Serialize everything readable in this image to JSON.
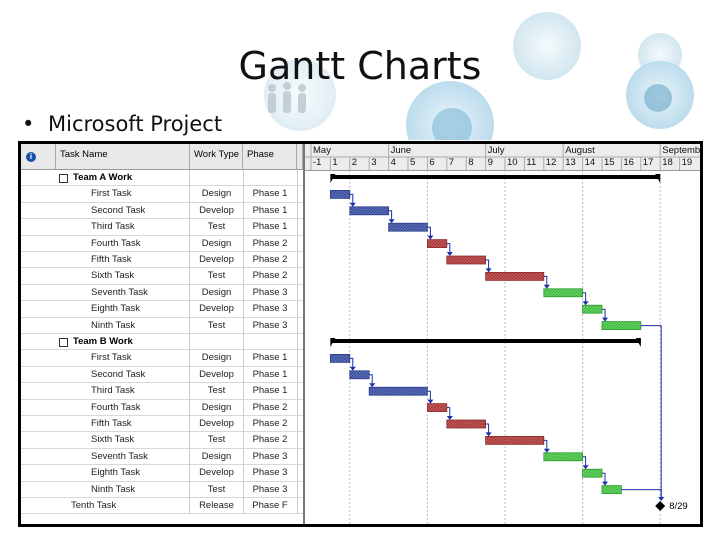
{
  "slide": {
    "title": "Gantt Charts",
    "bullet": "Microsoft Project"
  },
  "colors": {
    "accent_blue": "#2c3f8e",
    "bar_blue": "#5d6fb6",
    "bar_red": "#c85a5a",
    "bar_green": "#5ed45e",
    "summary": "#000000",
    "link": "#1a2fa8"
  },
  "table": {
    "headers": {
      "name": "Task Name",
      "type": "Work Type",
      "phase": "Phase"
    },
    "info_icon": "info-icon",
    "rows": [
      {
        "name": "Team A Work",
        "type": "",
        "phase": "",
        "kind": "summary"
      },
      {
        "name": "First Task",
        "type": "Design",
        "phase": "Phase 1",
        "kind": "task"
      },
      {
        "name": "Second Task",
        "type": "Develop",
        "phase": "Phase 1",
        "kind": "task"
      },
      {
        "name": "Third Task",
        "type": "Test",
        "phase": "Phase 1",
        "kind": "task"
      },
      {
        "name": "Fourth Task",
        "type": "Design",
        "phase": "Phase 2",
        "kind": "task"
      },
      {
        "name": "Fifth Task",
        "type": "Develop",
        "phase": "Phase 2",
        "kind": "task"
      },
      {
        "name": "Sixth Task",
        "type": "Test",
        "phase": "Phase 2",
        "kind": "task"
      },
      {
        "name": "Seventh Task",
        "type": "Design",
        "phase": "Phase 3",
        "kind": "task"
      },
      {
        "name": "Eighth Task",
        "type": "Develop",
        "phase": "Phase 3",
        "kind": "task"
      },
      {
        "name": "Ninth Task",
        "type": "Test",
        "phase": "Phase 3",
        "kind": "task"
      },
      {
        "name": "Team B Work",
        "type": "",
        "phase": "",
        "kind": "summary"
      },
      {
        "name": "First Task",
        "type": "Design",
        "phase": "Phase 1",
        "kind": "task"
      },
      {
        "name": "Second Task",
        "type": "Develop",
        "phase": "Phase 1",
        "kind": "task"
      },
      {
        "name": "Third Task",
        "type": "Test",
        "phase": "Phase 1",
        "kind": "task"
      },
      {
        "name": "Fourth Task",
        "type": "Design",
        "phase": "Phase 2",
        "kind": "task"
      },
      {
        "name": "Fifth Task",
        "type": "Develop",
        "phase": "Phase 2",
        "kind": "task"
      },
      {
        "name": "Sixth Task",
        "type": "Test",
        "phase": "Phase 2",
        "kind": "task"
      },
      {
        "name": "Seventh Task",
        "type": "Design",
        "phase": "Phase 3",
        "kind": "task"
      },
      {
        "name": "Eighth Task",
        "type": "Develop",
        "phase": "Phase 3",
        "kind": "task"
      },
      {
        "name": "Ninth Task",
        "type": "Test",
        "phase": "Phase 3",
        "kind": "task"
      },
      {
        "name": "Tenth Task",
        "type": "Release",
        "phase": "Phase F",
        "kind": "release"
      }
    ]
  },
  "timescale": {
    "months": [
      "May",
      "June",
      "July",
      "August",
      "September"
    ],
    "weeks": [
      "-1",
      "1",
      "2",
      "3",
      "4",
      "5",
      "6",
      "7",
      "8",
      "9",
      "10",
      "11",
      "12",
      "13",
      "14",
      "15",
      "16",
      "17",
      "18",
      "19"
    ]
  },
  "chart_data": {
    "type": "gantt",
    "unit": "week",
    "week_range": [
      -1,
      19
    ],
    "gridlines_at_weeks": [
      1,
      5,
      9,
      13,
      17
    ],
    "milestone_label": "8/29",
    "tasks": [
      {
        "row": 0,
        "kind": "summary",
        "start": 0,
        "end": 17
      },
      {
        "row": 1,
        "kind": "task",
        "phase": 1,
        "start": 0,
        "end": 1
      },
      {
        "row": 2,
        "kind": "task",
        "phase": 1,
        "start": 1,
        "end": 3
      },
      {
        "row": 3,
        "kind": "task",
        "phase": 1,
        "start": 3,
        "end": 5
      },
      {
        "row": 4,
        "kind": "task",
        "phase": 2,
        "start": 5,
        "end": 6
      },
      {
        "row": 5,
        "kind": "task",
        "phase": 2,
        "start": 6,
        "end": 8
      },
      {
        "row": 6,
        "kind": "task",
        "phase": 2,
        "start": 8,
        "end": 11
      },
      {
        "row": 7,
        "kind": "task",
        "phase": 3,
        "start": 11,
        "end": 13
      },
      {
        "row": 8,
        "kind": "task",
        "phase": 3,
        "start": 13,
        "end": 14
      },
      {
        "row": 9,
        "kind": "task",
        "phase": 3,
        "start": 14,
        "end": 16
      },
      {
        "row": 10,
        "kind": "summary",
        "start": 0,
        "end": 16
      },
      {
        "row": 11,
        "kind": "task",
        "phase": 1,
        "start": 0,
        "end": 1
      },
      {
        "row": 12,
        "kind": "task",
        "phase": 1,
        "start": 1,
        "end": 2
      },
      {
        "row": 13,
        "kind": "task",
        "phase": 1,
        "start": 2,
        "end": 5
      },
      {
        "row": 14,
        "kind": "task",
        "phase": 2,
        "start": 5,
        "end": 6
      },
      {
        "row": 15,
        "kind": "task",
        "phase": 2,
        "start": 6,
        "end": 8
      },
      {
        "row": 16,
        "kind": "task",
        "phase": 2,
        "start": 8,
        "end": 11
      },
      {
        "row": 17,
        "kind": "task",
        "phase": 3,
        "start": 11,
        "end": 13
      },
      {
        "row": 18,
        "kind": "task",
        "phase": 3,
        "start": 13,
        "end": 14
      },
      {
        "row": 19,
        "kind": "task",
        "phase": 3,
        "start": 14,
        "end": 15
      },
      {
        "row": 20,
        "kind": "milestone",
        "start": 17,
        "end": 17
      }
    ]
  }
}
